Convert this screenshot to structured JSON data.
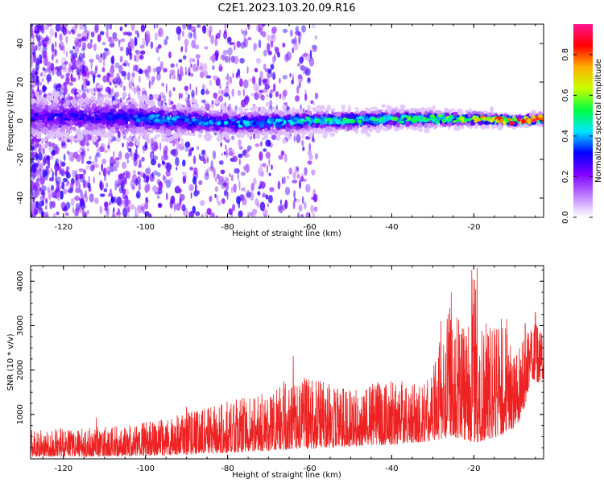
{
  "figure_title": "C2E1.2023.103.20.09.R16",
  "chart_data": [
    {
      "type": "heatmap",
      "title": "C2E1.2023.103.20.09.R16",
      "xlabel": "Height of straight line (km)",
      "ylabel": "Frequency (Hz)",
      "xlim": [
        -128,
        -3
      ],
      "ylim": [
        -50,
        50
      ],
      "x_ticks": [
        -120,
        -100,
        -80,
        -60,
        -40,
        -20
      ],
      "y_ticks": [
        -40,
        -20,
        0,
        20,
        40
      ],
      "grid": false,
      "colorbar": {
        "label": "Normalized spectral amplitude",
        "range": [
          0.0,
          0.95
        ],
        "ticks": [
          0.0,
          0.2,
          0.4,
          0.6,
          0.8
        ],
        "colormap": [
          "#ffffff",
          "#c080ff",
          "#8000ff",
          "#0000ff",
          "#00e5ff",
          "#00ff40",
          "#c8ff00",
          "#ffb000",
          "#ff0000",
          "#ff1493"
        ]
      },
      "ridge": {
        "x": [
          -128,
          -110,
          -100,
          -90,
          -80,
          -70,
          -60,
          -50,
          -40,
          -30,
          -20,
          -10,
          -3
        ],
        "frequency_center": [
          2,
          2,
          1,
          0,
          -1,
          -1,
          0,
          0,
          1,
          1,
          1,
          0,
          1
        ],
        "peak_amplitude": [
          0.28,
          0.3,
          0.38,
          0.4,
          0.4,
          0.42,
          0.48,
          0.5,
          0.55,
          0.6,
          0.68,
          0.82,
          0.9
        ],
        "spread_hz": [
          8,
          8,
          7,
          6,
          5,
          5,
          4,
          4,
          3.5,
          3,
          2.5,
          2,
          2
        ]
      }
    },
    {
      "type": "line",
      "xlabel": "Height of straight line (km)",
      "ylabel": "SNR (10 * v/v)",
      "xlim": [
        -128,
        -3
      ],
      "ylim": [
        0,
        4350
      ],
      "x_ticks": [
        -120,
        -100,
        -80,
        -60,
        -40,
        -20
      ],
      "y_ticks": [
        1000,
        2000,
        3000,
        4000
      ],
      "grid": false,
      "color": "#ee2222",
      "envelope": {
        "x": [
          -128,
          -115,
          -105,
          -95,
          -90,
          -85,
          -80,
          -75,
          -70,
          -66,
          -62,
          -55,
          -50,
          -45,
          -40,
          -35,
          -30,
          -28,
          -25,
          -22,
          -20,
          -18,
          -16,
          -14,
          -12,
          -10,
          -8,
          -6,
          -4,
          -3
        ],
        "min": [
          50,
          50,
          60,
          80,
          100,
          110,
          130,
          150,
          170,
          200,
          220,
          250,
          280,
          300,
          320,
          350,
          400,
          450,
          500,
          400,
          350,
          400,
          450,
          500,
          600,
          700,
          1000,
          1800,
          1700,
          1800
        ],
        "max": [
          650,
          700,
          750,
          900,
          1050,
          1150,
          1300,
          1400,
          1500,
          1800,
          1900,
          1700,
          1600,
          1700,
          1800,
          1700,
          2000,
          3000,
          3600,
          2800,
          4200,
          2900,
          3000,
          3200,
          3100,
          2300,
          2700,
          3200,
          3000,
          2900
        ]
      },
      "spikes": [
        {
          "x": -112,
          "y": 930
        },
        {
          "x": -90,
          "y": 1160
        },
        {
          "x": -64,
          "y": 2320
        },
        {
          "x": -28,
          "y": 3100
        },
        {
          "x": -25.5,
          "y": 3750
        },
        {
          "x": -20.5,
          "y": 4250
        },
        {
          "x": -19.2,
          "y": 4300
        },
        {
          "x": -17,
          "y": 3050
        },
        {
          "x": -12,
          "y": 3150
        },
        {
          "x": -7.5,
          "y": 3050
        },
        {
          "x": -5,
          "y": 3300
        }
      ]
    }
  ]
}
